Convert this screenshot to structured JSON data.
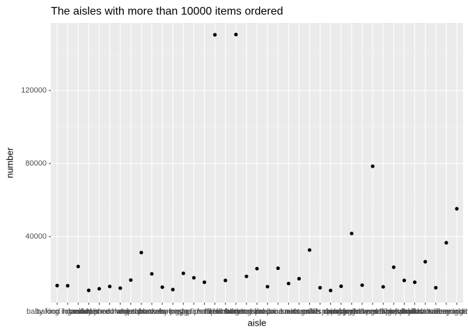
{
  "chart_data": {
    "type": "scatter",
    "title": "The aisles with more than 10000 items ordered",
    "x_label": "aisle",
    "y_label": "number",
    "categories": [
      "baby food formula",
      "baking ingredients",
      "bread",
      "butter",
      "candy chocolate",
      "canned jarred vegetables",
      "canned meals beans",
      "cereal",
      "chips pretzels",
      "crackers",
      "cream",
      "dry pasta",
      "eggs",
      "energy granola bars",
      "fresh dips tapenades",
      "fresh fruits",
      "fresh herbs",
      "fresh vegetables",
      "frozen meals",
      "frozen produce",
      "hot dogs bacon sausage",
      "ice cream ice",
      "juice nectars",
      "lunch meat",
      "milk",
      "nuts seeds dried fruit",
      "oils vinegars",
      "other creams cheeses",
      "packaged cheese",
      "packaged produce",
      "packaged vegetables fruits",
      "preserved dips spreads",
      "refrigerated",
      "soft drinks",
      "soup broth bouillon",
      "soy lactosefree",
      "spices seasonings",
      "water seltzer sparkling water",
      "yogurt"
    ],
    "values": [
      13198,
      13088,
      23635,
      10575,
      11453,
      12679,
      11774,
      16201,
      31269,
      19592,
      12300,
      11000,
      19875,
      17449,
      15000,
      150473,
      16000,
      150609,
      18221,
      22453,
      12600,
      22676,
      14300,
      16957,
      32644,
      12000,
      10500,
      12800,
      41699,
      13400,
      78493,
      12500,
      23228,
      16000,
      15000,
      26240,
      12000,
      36617,
      55240
    ],
    "color": "#000000",
    "ylim": [
      3810,
      156950
    ],
    "yticks": [
      40000,
      80000,
      120000
    ],
    "y_minor_grid": [
      20000,
      60000,
      100000,
      140000
    ],
    "grid": true
  }
}
